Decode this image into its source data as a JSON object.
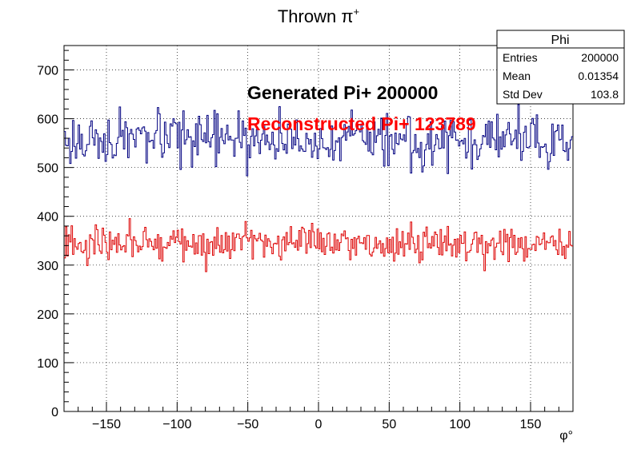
{
  "chart_data": {
    "type": "step-histogram",
    "title_base": "Thrown ",
    "title_symbol": "π",
    "title_sup": "+",
    "xlabel": "φ°",
    "ylabel": "",
    "xlim": [
      -180,
      180
    ],
    "ylim": [
      0,
      750
    ],
    "xticks": [
      -150,
      -100,
      -50,
      0,
      50,
      100,
      150
    ],
    "yticks": [
      0,
      100,
      200,
      300,
      400,
      500,
      600,
      700
    ],
    "grid": true,
    "bins": 360,
    "series": [
      {
        "name": "",
        "color": "#000080",
        "mean_level": 555,
        "spread": 26,
        "seed": 17
      },
      {
        "name": "",
        "color": "#dd0000",
        "mean_level": 343,
        "spread": 18,
        "seed": 91
      }
    ],
    "stats_box": {
      "title": "Phi",
      "rows": [
        {
          "label": "Entries",
          "value": "200000"
        },
        {
          "label": "Mean",
          "value": "0.01354"
        },
        {
          "label": "Std Dev",
          "value": "103.8"
        }
      ]
    },
    "annotations": [
      {
        "text": "Generated Pi+ 200000",
        "color": "#000000"
      },
      {
        "text": "Reconstructed Pi+ 123789",
        "color": "#ff0000"
      }
    ]
  }
}
